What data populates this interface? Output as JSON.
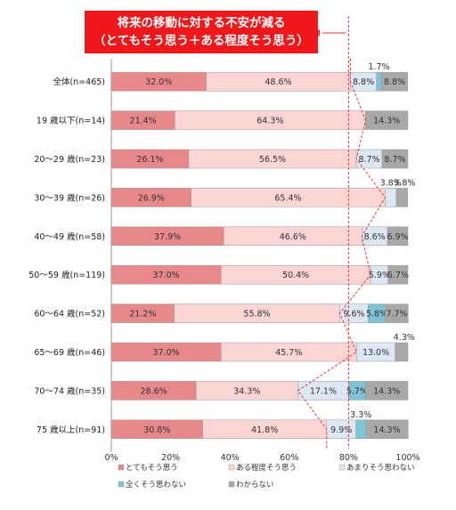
{
  "callout": {
    "line1": "将来の移動に対する不安が減る",
    "line2": "（とてもそう思う＋ある程度そう思う）"
  },
  "chart_data": {
    "type": "bar",
    "orientation": "horizontal",
    "stacked": true,
    "percent_stacked": true,
    "categories": [
      "全体(n=465)",
      "19 歳以下(n=14)",
      "20～29 歳(n=23)",
      "30～39 歳(n=26)",
      "40～49 歳(n=58)",
      "50～59 歳(n=119)",
      "60～64 歳(n=52)",
      "65～69 歳(n=46)",
      "70～74 歳(n=35)",
      "75 歳以上(n=91)"
    ],
    "series": [
      {
        "name": "とてもそう思う",
        "color": "#e8888a",
        "values": [
          32.0,
          21.4,
          26.1,
          26.9,
          37.9,
          37.0,
          21.2,
          37.0,
          28.6,
          30.8
        ]
      },
      {
        "name": "ある程度そう思う",
        "color": "#fbd4d4",
        "values": [
          48.6,
          64.3,
          56.5,
          65.4,
          46.6,
          50.4,
          55.8,
          45.7,
          34.3,
          41.8
        ]
      },
      {
        "name": "あまりそう思わない",
        "color": "#dde6f3",
        "values": [
          8.8,
          0,
          8.7,
          3.8,
          8.6,
          5.9,
          9.6,
          13.0,
          17.1,
          9.9
        ]
      },
      {
        "name": "全くそう思わない",
        "color": "#7fc3d6",
        "values": [
          1.7,
          0,
          0,
          0,
          0,
          0,
          5.8,
          0,
          5.7,
          3.3
        ]
      },
      {
        "name": "わからない",
        "color": "#a8a8a8",
        "values": [
          8.8,
          14.3,
          8.7,
          3.8,
          6.9,
          6.7,
          7.7,
          4.3,
          14.3,
          14.3
        ]
      }
    ],
    "labels": [
      [
        "32.0%",
        "48.6%",
        "8.8%",
        "1.7%",
        "8.8%"
      ],
      [
        "21.4%",
        "64.3%",
        "",
        "",
        "14.3%"
      ],
      [
        "26.1%",
        "56.5%",
        "8.7%",
        "",
        "8.7%"
      ],
      [
        "26.9%",
        "65.4%",
        "3.8%",
        "",
        "3.8%"
      ],
      [
        "37.9%",
        "46.6%",
        "8.6%",
        "",
        "6.9%"
      ],
      [
        "37.0%",
        "50.4%",
        "5.9%",
        "",
        "6.7%"
      ],
      [
        "21.2%",
        "55.8%",
        "9.6%",
        "5.8%",
        "7.7%"
      ],
      [
        "37.0%",
        "45.7%",
        "13.0%",
        "",
        "4.3%"
      ],
      [
        "28.6%",
        "34.3%",
        "17.1%",
        "5.7%",
        "14.3%"
      ],
      [
        "30.8%",
        "41.8%",
        "9.9%",
        "3.3%",
        "14.3%"
      ]
    ],
    "xlim": [
      0,
      100
    ],
    "x_ticks": [
      "0%",
      "20%",
      "40%",
      "60%",
      "80%",
      "100%"
    ],
    "grid": false,
    "legend_position": "bottom",
    "reference_line": "dashed red line at the 80% tick",
    "connector_line": "dashed red line joining the cumulative とてもそう思う＋ある程度そう思う totals of each bar"
  }
}
